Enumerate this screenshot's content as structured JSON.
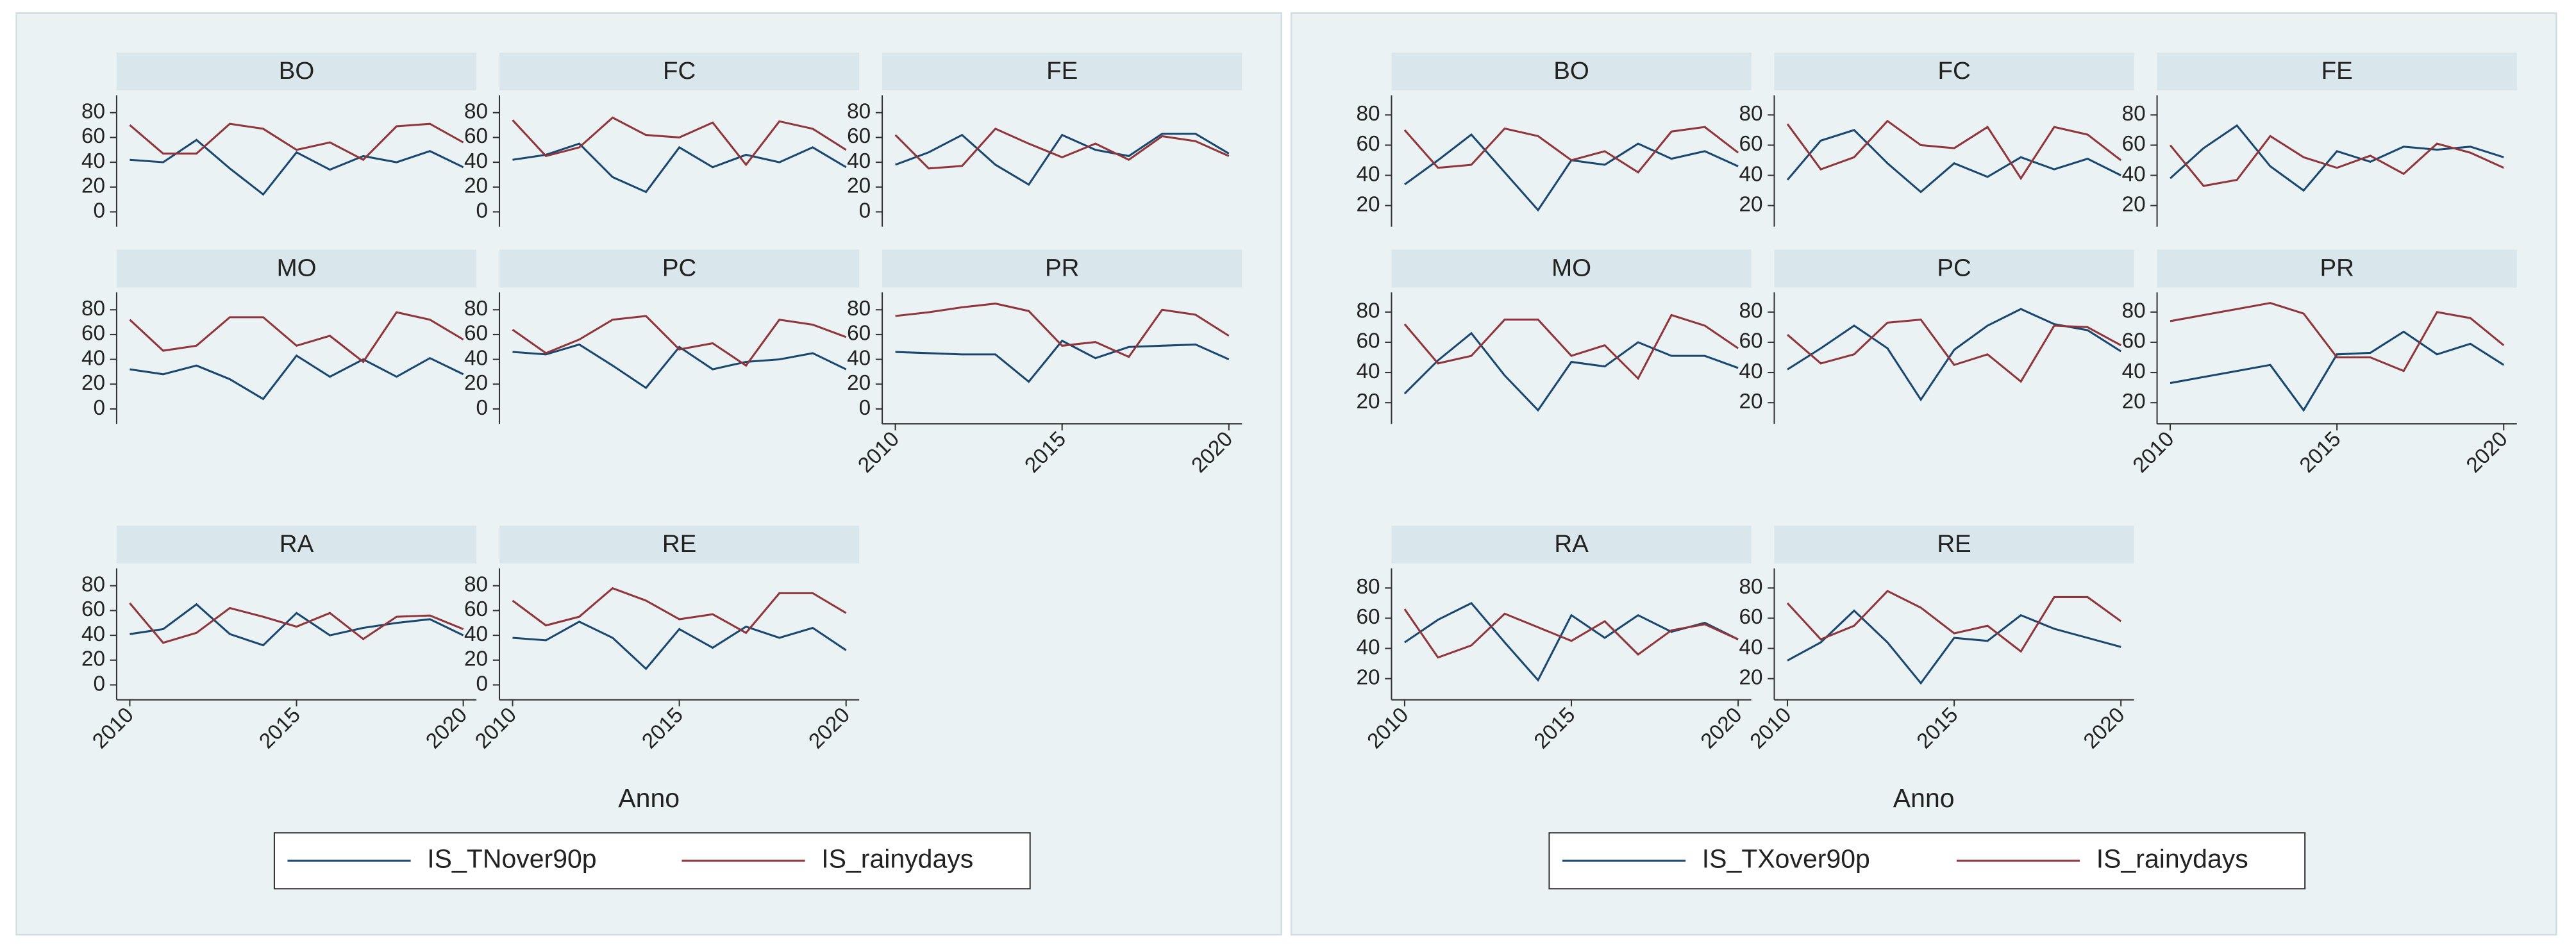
{
  "chart_data": [
    {
      "type": "line",
      "xlabel": "Anno",
      "x": [
        2010,
        2011,
        2012,
        2013,
        2014,
        2015,
        2016,
        2017,
        2018,
        2019,
        2020
      ],
      "xlim": [
        2010,
        2020
      ],
      "xticks": [
        2010,
        2015,
        2020
      ],
      "ylim": [
        -12,
        94
      ],
      "yticks": [
        0,
        20,
        40,
        60,
        80
      ],
      "series": [
        {
          "name": "IS_TNover90p",
          "color": "#1a476f"
        },
        {
          "name": "IS_rainydays",
          "color": "#90353b"
        }
      ],
      "panels": [
        {
          "title": "BO",
          "values": [
            [
              42,
              40,
              58,
              35,
              14,
              48,
              34,
              45,
              40,
              49,
              36
            ],
            [
              70,
              47,
              47,
              71,
              67,
              50,
              56,
              42,
              69,
              71,
              56
            ]
          ]
        },
        {
          "title": "FC",
          "values": [
            [
              42,
              46,
              55,
              28,
              16,
              52,
              36,
              46,
              40,
              52,
              36
            ],
            [
              74,
              45,
              52,
              76,
              62,
              60,
              72,
              38,
              73,
              67,
              50
            ]
          ]
        },
        {
          "title": "FE",
          "values": [
            [
              38,
              48,
              62,
              38,
              22,
              62,
              50,
              45,
              63,
              63,
              47
            ],
            [
              62,
              35,
              37,
              67,
              55,
              44,
              55,
              42,
              61,
              57,
              45
            ]
          ]
        },
        {
          "title": "MO",
          "values": [
            [
              32,
              28,
              35,
              24,
              8,
              43,
              26,
              40,
              26,
              41,
              28
            ],
            [
              72,
              47,
              51,
              74,
              74,
              51,
              59,
              38,
              78,
              72,
              56
            ]
          ]
        },
        {
          "title": "PC",
          "values": [
            [
              46,
              44,
              52,
              35,
              17,
              50,
              32,
              38,
              40,
              45,
              32
            ],
            [
              64,
              45,
              56,
              72,
              75,
              48,
              53,
              35,
              72,
              68,
              58
            ]
          ]
        },
        {
          "title": "PR",
          "values": [
            [
              46,
              45,
              44,
              44,
              22,
              55,
              41,
              50,
              51,
              52,
              40
            ],
            [
              75,
              78,
              82,
              85,
              79,
              51,
              54,
              42,
              80,
              76,
              59
            ]
          ]
        },
        {
          "title": "RA",
          "values": [
            [
              41,
              45,
              65,
              41,
              32,
              58,
              40,
              46,
              50,
              53,
              40
            ],
            [
              66,
              34,
              42,
              62,
              55,
              47,
              58,
              37,
              55,
              56,
              45
            ]
          ]
        },
        {
          "title": "RE",
          "values": [
            [
              38,
              36,
              51,
              38,
              13,
              45,
              30,
              47,
              38,
              46,
              28
            ],
            [
              68,
              48,
              55,
              78,
              68,
              53,
              57,
              42,
              74,
              74,
              58
            ]
          ]
        }
      ]
    },
    {
      "type": "line",
      "xlabel": "Anno",
      "x": [
        2010,
        2011,
        2012,
        2013,
        2014,
        2015,
        2016,
        2017,
        2018,
        2019,
        2020
      ],
      "xlim": [
        2010,
        2020
      ],
      "xticks": [
        2010,
        2015,
        2020
      ],
      "ylim": [
        6,
        93
      ],
      "yticks": [
        20,
        40,
        60,
        80
      ],
      "series": [
        {
          "name": "IS_TXover90p",
          "color": "#1a476f"
        },
        {
          "name": "IS_rainydays",
          "color": "#90353b"
        }
      ],
      "panels": [
        {
          "title": "BO",
          "values": [
            [
              34,
              50,
              67,
              42,
              17,
              50,
              47,
              61,
              51,
              56,
              46
            ],
            [
              70,
              45,
              47,
              71,
              66,
              50,
              56,
              42,
              69,
              72,
              55
            ]
          ]
        },
        {
          "title": "FC",
          "values": [
            [
              37,
              63,
              70,
              48,
              29,
              48,
              39,
              52,
              44,
              51,
              40
            ],
            [
              74,
              44,
              52,
              76,
              60,
              58,
              72,
              38,
              72,
              67,
              50
            ]
          ]
        },
        {
          "title": "FE",
          "values": [
            [
              38,
              58,
              73,
              46,
              30,
              56,
              49,
              59,
              57,
              59,
              52
            ],
            [
              60,
              33,
              37,
              66,
              52,
              45,
              53,
              41,
              61,
              55,
              45
            ]
          ]
        },
        {
          "title": "MO",
          "values": [
            [
              26,
              48,
              66,
              38,
              15,
              47,
              44,
              60,
              51,
              51,
              43
            ],
            [
              72,
              46,
              51,
              75,
              75,
              51,
              58,
              36,
              78,
              71,
              56
            ]
          ]
        },
        {
          "title": "PC",
          "values": [
            [
              42,
              56,
              71,
              56,
              22,
              55,
              71,
              82,
              72,
              68,
              54
            ],
            [
              65,
              46,
              52,
              73,
              75,
              45,
              52,
              34,
              71,
              70,
              58
            ]
          ]
        },
        {
          "title": "PR",
          "values": [
            [
              33,
              37,
              41,
              45,
              15,
              52,
              53,
              67,
              52,
              59,
              45
            ],
            [
              74,
              78,
              82,
              86,
              79,
              50,
              50,
              41,
              80,
              76,
              58
            ]
          ]
        },
        {
          "title": "RA",
          "values": [
            [
              44,
              59,
              70,
              44,
              19,
              62,
              47,
              62,
              51,
              57,
              46
            ],
            [
              66,
              34,
              42,
              63,
              54,
              45,
              58,
              36,
              52,
              56,
              46
            ]
          ]
        },
        {
          "title": "RE",
          "values": [
            [
              32,
              44,
              65,
              44,
              17,
              47,
              45,
              62,
              53,
              47,
              41
            ],
            [
              70,
              46,
              55,
              78,
              67,
              50,
              55,
              38,
              74,
              74,
              58
            ]
          ]
        }
      ]
    }
  ]
}
